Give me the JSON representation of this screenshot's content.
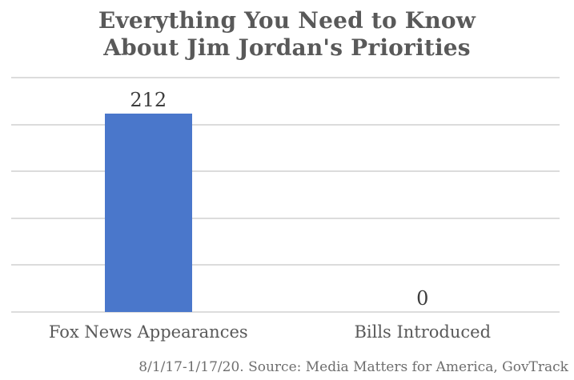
{
  "chart": {
    "title_display": "Everything You Need to Know\nAbout Jim Jordan's Priorities",
    "source_note": "8/1/17-1/17/20. Source: Media Matters for America, GovTrack"
  },
  "chart_data": {
    "type": "bar",
    "title": "Everything You Need to Know About Jim Jordan's Priorities",
    "categories": [
      "Fox News Appearances",
      "Bills Introduced"
    ],
    "values": [
      212,
      0
    ],
    "value_labels": [
      "212",
      "0"
    ],
    "xlabel": "",
    "ylabel": "",
    "ylim": [
      0,
      250
    ],
    "gridline_step": 50,
    "grid": true,
    "legend": false,
    "bar_color": "#4a77cb",
    "gridline_color": "#dcdcdc",
    "title_color": "#595959",
    "label_color": "#3d3d3d",
    "source_note": "8/1/17-1/17/20. Source: Media Matters for America, GovTrack"
  }
}
